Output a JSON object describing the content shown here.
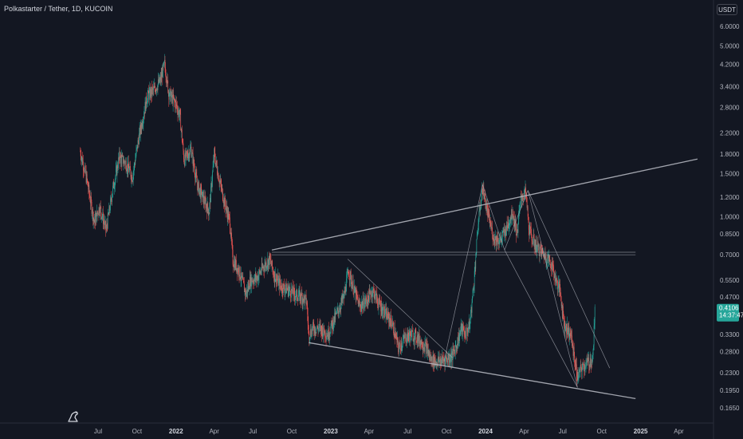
{
  "header": {
    "symbol_title": "Polkastarter / Tether, 1D, KUCOIN",
    "currency": "USDT"
  },
  "price_tag": {
    "price": "0.4106",
    "countdown": "14:37:47"
  },
  "colors": {
    "background": "#131722",
    "up": "#26a69a",
    "down": "#ef5350",
    "drawing": "#b2b5be",
    "tag": "#26a69a"
  },
  "chart_data": {
    "type": "candlestick",
    "scale": "log",
    "grid": false,
    "y_ticks": [
      "6.0000",
      "5.0000",
      "4.2000",
      "3.4000",
      "2.8000",
      "2.2000",
      "1.8000",
      "1.5000",
      "1.2000",
      "1.0000",
      "0.8500",
      "0.7000",
      "0.5500",
      "0.4700",
      "0.3300",
      "0.2800",
      "0.2300",
      "0.1950",
      "0.1650"
    ],
    "ylim": [
      0.155,
      7.2
    ],
    "x_labels": [
      {
        "label": "Jul",
        "date": "2021-07-01",
        "bold": false
      },
      {
        "label": "Oct",
        "date": "2021-10-01",
        "bold": false
      },
      {
        "label": "2022",
        "date": "2022-01-01",
        "bold": true
      },
      {
        "label": "Apr",
        "date": "2022-04-01",
        "bold": false
      },
      {
        "label": "Jul",
        "date": "2022-07-01",
        "bold": false
      },
      {
        "label": "Oct",
        "date": "2022-10-01",
        "bold": false
      },
      {
        "label": "2023",
        "date": "2023-01-01",
        "bold": true
      },
      {
        "label": "Apr",
        "date": "2023-04-01",
        "bold": false
      },
      {
        "label": "Jul",
        "date": "2023-07-01",
        "bold": false
      },
      {
        "label": "Oct",
        "date": "2023-10-01",
        "bold": false
      },
      {
        "label": "2024",
        "date": "2024-01-01",
        "bold": true
      },
      {
        "label": "Apr",
        "date": "2024-04-01",
        "bold": false
      },
      {
        "label": "Jul",
        "date": "2024-07-01",
        "bold": false
      },
      {
        "label": "Oct",
        "date": "2024-10-01",
        "bold": false
      },
      {
        "label": "2025",
        "date": "2025-01-01",
        "bold": true
      },
      {
        "label": "Apr",
        "date": "2025-04-01",
        "bold": false
      }
    ],
    "price_path": [
      [
        "2021-05-20",
        1.85
      ],
      [
        "2021-06-05",
        1.4
      ],
      [
        "2021-06-22",
        0.95
      ],
      [
        "2021-07-05",
        1.1
      ],
      [
        "2021-07-20",
        0.88
      ],
      [
        "2021-08-05",
        1.3
      ],
      [
        "2021-08-20",
        1.75
      ],
      [
        "2021-09-05",
        1.65
      ],
      [
        "2021-09-20",
        1.45
      ],
      [
        "2021-10-05",
        2.1
      ],
      [
        "2021-10-25",
        3.1
      ],
      [
        "2021-11-10",
        3.3
      ],
      [
        "2021-11-25",
        3.6
      ],
      [
        "2021-12-05",
        4.2
      ],
      [
        "2021-12-15",
        3.2
      ],
      [
        "2021-12-31",
        2.9
      ],
      [
        "2022-01-10",
        2.6
      ],
      [
        "2022-01-20",
        1.7
      ],
      [
        "2022-02-05",
        1.9
      ],
      [
        "2022-02-20",
        1.35
      ],
      [
        "2022-03-05",
        1.2
      ],
      [
        "2022-03-20",
        1.05
      ],
      [
        "2022-04-01",
        1.8
      ],
      [
        "2022-04-10",
        1.5
      ],
      [
        "2022-04-25",
        1.15
      ],
      [
        "2022-05-08",
        0.95
      ],
      [
        "2022-05-15",
        0.66
      ],
      [
        "2022-05-30",
        0.6
      ],
      [
        "2022-06-15",
        0.48
      ],
      [
        "2022-06-25",
        0.55
      ],
      [
        "2022-07-10",
        0.56
      ],
      [
        "2022-07-25",
        0.62
      ],
      [
        "2022-08-10",
        0.67
      ],
      [
        "2022-08-20",
        0.58
      ],
      [
        "2022-09-05",
        0.52
      ],
      [
        "2022-09-25",
        0.5
      ],
      [
        "2022-10-10",
        0.48
      ],
      [
        "2022-10-25",
        0.47
      ],
      [
        "2022-11-05",
        0.45
      ],
      [
        "2022-11-10",
        0.33
      ],
      [
        "2022-11-20",
        0.35
      ],
      [
        "2022-12-05",
        0.35
      ],
      [
        "2022-12-25",
        0.33
      ],
      [
        "2023-01-15",
        0.4
      ],
      [
        "2023-02-01",
        0.47
      ],
      [
        "2023-02-12",
        0.6
      ],
      [
        "2023-02-25",
        0.5
      ],
      [
        "2023-03-10",
        0.43
      ],
      [
        "2023-03-25",
        0.45
      ],
      [
        "2023-04-10",
        0.5
      ],
      [
        "2023-04-25",
        0.44
      ],
      [
        "2023-05-10",
        0.4
      ],
      [
        "2023-05-25",
        0.37
      ],
      [
        "2023-06-10",
        0.29
      ],
      [
        "2023-06-25",
        0.32
      ],
      [
        "2023-07-10",
        0.33
      ],
      [
        "2023-07-25",
        0.32
      ],
      [
        "2023-08-15",
        0.29
      ],
      [
        "2023-08-25",
        0.26
      ],
      [
        "2023-09-10",
        0.255
      ],
      [
        "2023-09-25",
        0.26
      ],
      [
        "2023-10-15",
        0.27
      ],
      [
        "2023-10-25",
        0.3
      ],
      [
        "2023-11-05",
        0.35
      ],
      [
        "2023-11-15",
        0.33
      ],
      [
        "2023-11-25",
        0.36
      ],
      [
        "2023-12-05",
        0.55
      ],
      [
        "2023-12-15",
        0.95
      ],
      [
        "2023-12-25",
        1.32
      ],
      [
        "2024-01-05",
        1.05
      ],
      [
        "2024-01-20",
        0.82
      ],
      [
        "2024-02-05",
        0.8
      ],
      [
        "2024-02-20",
        0.9
      ],
      [
        "2024-03-05",
        1.05
      ],
      [
        "2024-03-15",
        0.85
      ],
      [
        "2024-03-25",
        1.2
      ],
      [
        "2024-04-05",
        1.25
      ],
      [
        "2024-04-13",
        0.88
      ],
      [
        "2024-04-25",
        0.78
      ],
      [
        "2024-05-10",
        0.72
      ],
      [
        "2024-05-25",
        0.68
      ],
      [
        "2024-06-05",
        0.64
      ],
      [
        "2024-06-15",
        0.55
      ],
      [
        "2024-06-25",
        0.5
      ],
      [
        "2024-07-05",
        0.36
      ],
      [
        "2024-07-20",
        0.33
      ],
      [
        "2024-08-05",
        0.22
      ],
      [
        "2024-08-15",
        0.24
      ],
      [
        "2024-08-25",
        0.25
      ],
      [
        "2024-09-10",
        0.26
      ],
      [
        "2024-09-15",
        0.41
      ]
    ],
    "drawings": [
      {
        "name": "upper-trendline",
        "points": [
          [
            "2022-08-15",
            0.73
          ],
          [
            "2025-05-15",
            1.72
          ]
        ]
      },
      {
        "name": "lower-trendline",
        "points": [
          [
            "2022-11-10",
            0.305
          ],
          [
            "2024-12-20",
            0.18
          ]
        ]
      },
      {
        "name": "horizontal-level-top",
        "points": [
          [
            "2022-08-15",
            0.715
          ],
          [
            "2024-12-20",
            0.715
          ]
        ]
      },
      {
        "name": "horizontal-level-bottom",
        "points": [
          [
            "2022-08-15",
            0.698
          ],
          [
            "2024-12-20",
            0.698
          ]
        ]
      },
      {
        "name": "descending-line-2023",
        "points": [
          [
            "2023-02-10",
            0.67
          ],
          [
            "2023-10-15",
            0.265
          ]
        ]
      },
      {
        "name": "descending-line-2024",
        "points": [
          [
            "2024-04-10",
            1.28
          ],
          [
            "2024-10-20",
            0.24
          ]
        ]
      },
      {
        "name": "pattern-leg-1",
        "points": [
          [
            "2023-09-25",
            0.255
          ],
          [
            "2023-12-25",
            1.35
          ]
        ]
      },
      {
        "name": "pattern-leg-2",
        "points": [
          [
            "2023-12-25",
            1.35
          ],
          [
            "2024-02-15",
            0.73
          ]
        ]
      },
      {
        "name": "pattern-leg-3",
        "points": [
          [
            "2024-02-15",
            0.73
          ],
          [
            "2024-04-10",
            1.28
          ]
        ]
      },
      {
        "name": "pattern-leg-4",
        "points": [
          [
            "2024-04-10",
            1.28
          ],
          [
            "2024-08-05",
            0.2
          ]
        ]
      },
      {
        "name": "pattern-leg-5",
        "points": [
          [
            "2024-02-15",
            0.73
          ],
          [
            "2024-08-05",
            0.2
          ]
        ]
      }
    ]
  }
}
